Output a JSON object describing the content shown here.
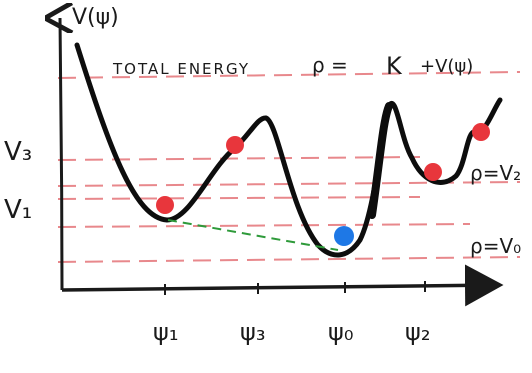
{
  "axes": {
    "y_label": "V(ψ)",
    "y_ticks": [
      "V₃",
      "V₁"
    ],
    "x_ticks": [
      "ψ₁",
      "ψ₃",
      "ψ₀",
      "ψ₂"
    ]
  },
  "title": "TOTAL ENERGY",
  "equation": {
    "lhs": "ρ =",
    "k": "K",
    "rest": "+V(ψ)"
  },
  "energy_levels": [
    {
      "label": "ρ=V₂"
    },
    {
      "label": "ρ=V₀"
    }
  ],
  "colors": {
    "axis": "#1a1a1a",
    "curve": "#0d0d0d",
    "level_lines": "#e8888c",
    "tangent_dash": "#2e9a3a",
    "ball_red": "#e8363c",
    "ball_blue": "#1e78e6"
  }
}
